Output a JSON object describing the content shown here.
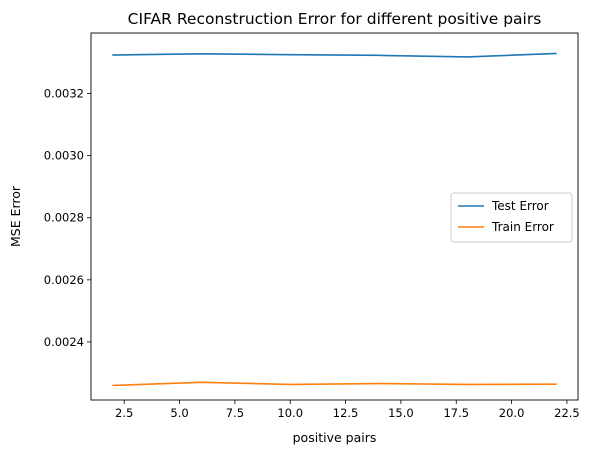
{
  "chart_data": {
    "type": "line",
    "title": "CIFAR Reconstruction Error for different positive pairs",
    "xlabel": "positive pairs",
    "ylabel": "MSE Error",
    "xlim": [
      1.0,
      23.0
    ],
    "ylim": [
      0.002213,
      0.003395
    ],
    "xticks": [
      2.5,
      5.0,
      7.5,
      10.0,
      12.5,
      15.0,
      17.5,
      20.0,
      22.5
    ],
    "xtick_labels": [
      "2.5",
      "5.0",
      "7.5",
      "10.0",
      "12.5",
      "15.0",
      "17.5",
      "20.0",
      "22.5"
    ],
    "yticks": [
      0.0024,
      0.0026,
      0.0028,
      0.003,
      0.0032
    ],
    "ytick_labels": [
      "0.0024",
      "0.0026",
      "0.0028",
      "0.0030",
      "0.0032"
    ],
    "grid": false,
    "legend_position": "center-right",
    "series": [
      {
        "name": "Test Error",
        "color": "#1f77b4",
        "x": [
          2,
          6,
          10,
          14,
          18,
          22
        ],
        "y": [
          0.003324,
          0.003328,
          0.003325,
          0.003323,
          0.003318,
          0.003329
        ]
      },
      {
        "name": "Train Error",
        "color": "#ff7f0e",
        "x": [
          2,
          6,
          10,
          14,
          18,
          22
        ],
        "y": [
          0.00226,
          0.00227,
          0.002263,
          0.002266,
          0.002263,
          0.002264
        ]
      }
    ]
  }
}
